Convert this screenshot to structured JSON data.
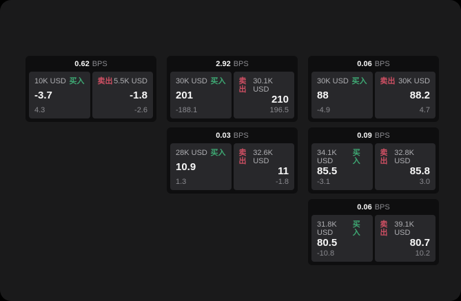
{
  "colors": {
    "window_bg": "#1a1a1b",
    "card_bg": "#0e0e0f",
    "panel_bg": "#28282b",
    "buy": "#3ea873",
    "sell": "#ce4f63",
    "text_primary": "#f7f7f7",
    "text_secondary": "#8a8a8f"
  },
  "labels": {
    "bps_unit": "BPS",
    "buy": "买入",
    "sell": "卖出"
  },
  "cards": [
    {
      "bps": "0.62",
      "grid": {
        "row": "1",
        "col": "1"
      },
      "buy": {
        "notional": "10K USD",
        "value": "-3.7",
        "delta": "4.3"
      },
      "sell": {
        "notional": "5.5K USD",
        "value": "-1.8",
        "delta": "-2.6"
      }
    },
    {
      "bps": "2.92",
      "grid": {
        "row": "1",
        "col": "2"
      },
      "buy": {
        "notional": "30K USD",
        "value": "201",
        "delta": "-188.1"
      },
      "sell": {
        "notional": "30.1K USD",
        "value": "210",
        "delta": "196.5"
      }
    },
    {
      "bps": "0.06",
      "grid": {
        "row": "1",
        "col": "3"
      },
      "buy": {
        "notional": "30K USD",
        "value": "88",
        "delta": "-4.9"
      },
      "sell": {
        "notional": "30K USD",
        "value": "88.2",
        "delta": "4.7"
      }
    },
    {
      "bps": "0.03",
      "grid": {
        "row": "2",
        "col": "2"
      },
      "buy": {
        "notional": "28K USD",
        "value": "10.9",
        "delta": "1.3"
      },
      "sell": {
        "notional": "32.6K USD",
        "value": "11",
        "delta": "-1.8"
      }
    },
    {
      "bps": "0.09",
      "grid": {
        "row": "2",
        "col": "3"
      },
      "buy": {
        "notional": "34.1K USD",
        "value": "85.5",
        "delta": "-3.1"
      },
      "sell": {
        "notional": "32.8K USD",
        "value": "85.8",
        "delta": "3.0"
      }
    },
    {
      "bps": "0.06",
      "grid": {
        "row": "3",
        "col": "3"
      },
      "buy": {
        "notional": "31.8K USD",
        "value": "80.5",
        "delta": "-10.8"
      },
      "sell": {
        "notional": "39.1K USD",
        "value": "80.7",
        "delta": "10.2"
      }
    }
  ]
}
